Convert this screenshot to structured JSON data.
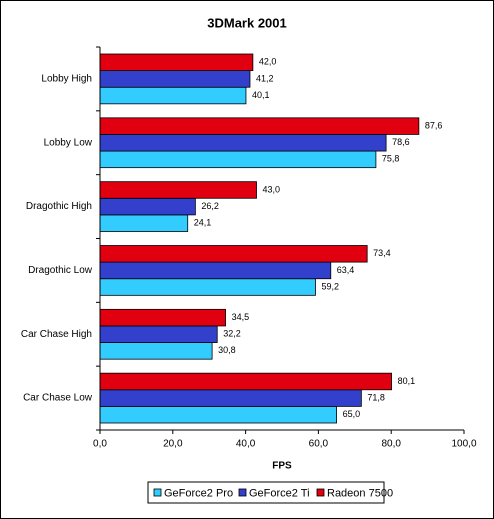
{
  "chart_data": {
    "type": "hbar",
    "title": "3DMark 2001",
    "x_label": "FPS",
    "categories": [
      "Lobby High",
      "Lobby Low",
      "Dragothic High",
      "Dragothic Low",
      "Car Chase High",
      "Car Chase Low"
    ],
    "series": [
      {
        "name": "GeForce2 Pro",
        "color": "#33ccff",
        "values": [
          40.1,
          75.8,
          24.1,
          59.2,
          30.8,
          65.0
        ],
        "value_labels": [
          "40,1",
          "75,8",
          "24,1",
          "59,2",
          "30,8",
          "65,0"
        ]
      },
      {
        "name": "GeForce2 Ti",
        "color": "#3340cc",
        "values": [
          41.2,
          78.6,
          26.2,
          63.4,
          32.2,
          71.8
        ],
        "value_labels": [
          "41,2",
          "78,6",
          "26,2",
          "63,4",
          "32,2",
          "71,8"
        ]
      },
      {
        "name": "Radeon 7500",
        "color": "#e00010",
        "values": [
          42.0,
          87.6,
          43.0,
          73.4,
          34.5,
          80.1
        ],
        "value_labels": [
          "42,0",
          "87,6",
          "43,0",
          "73,4",
          "34,5",
          "80,1"
        ]
      }
    ],
    "xlim": [
      0,
      100
    ],
    "xticks": [
      {
        "value": 0,
        "label": "0,0"
      },
      {
        "value": 20,
        "label": "20,0"
      },
      {
        "value": 40,
        "label": "40,0"
      },
      {
        "value": 60,
        "label": "60,0"
      },
      {
        "value": 80,
        "label": "80,0"
      },
      {
        "value": 100,
        "label": "100,0"
      }
    ],
    "legend": "bottom"
  }
}
